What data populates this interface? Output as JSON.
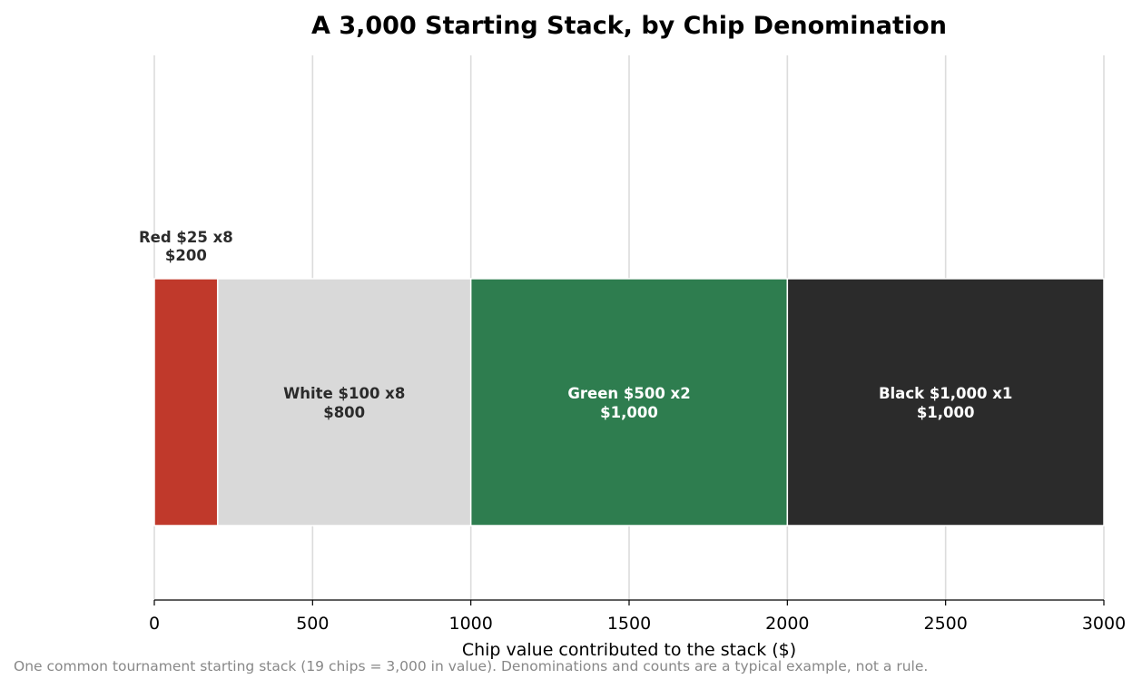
{
  "chart_data": {
    "type": "bar",
    "orientation": "horizontal",
    "stacked": true,
    "title": "A 3,000 Starting Stack, by Chip Denomination",
    "xlabel": "Chip value contributed to the stack ($)",
    "ylabel": "",
    "xlim": [
      0,
      3000
    ],
    "xticks": [
      "0",
      "500",
      "1000",
      "1500",
      "2000",
      "2500",
      "3000"
    ],
    "grid": "vertical",
    "segments": [
      {
        "label_line1": "Red $25 x8",
        "label_line2": "$200",
        "value": 200,
        "color": "#c0392b",
        "text_color": "#2b2b2b",
        "label_position": "above"
      },
      {
        "label_line1": "White $100 x8",
        "label_line2": "$800",
        "value": 800,
        "color": "#d9d9d9",
        "text_color": "#2b2b2b",
        "label_position": "inside"
      },
      {
        "label_line1": "Green $500 x2",
        "label_line2": "$1,000",
        "value": 1000,
        "color": "#2e7d4f",
        "text_color": "#ffffff",
        "label_position": "inside"
      },
      {
        "label_line1": "Black $1,000 x1",
        "label_line2": "$1,000",
        "value": 1000,
        "color": "#2b2b2b",
        "text_color": "#ffffff",
        "label_position": "inside"
      }
    ]
  },
  "caption": "One common tournament starting stack (19 chips = 3,000 in value). Denominations and counts are a typical example, not a rule."
}
